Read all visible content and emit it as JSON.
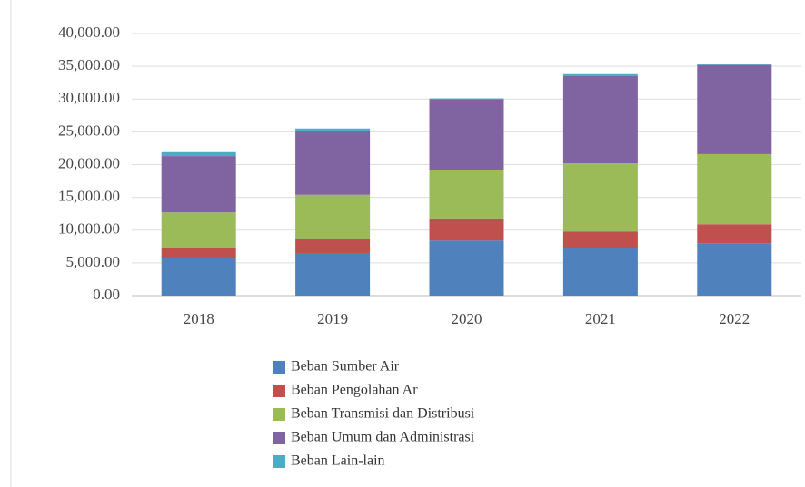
{
  "chart_data": {
    "type": "stacked_bar",
    "categories": [
      "2018",
      "2019",
      "2020",
      "2021",
      "2022"
    ],
    "series": [
      {
        "name": "Beban Sumber Air",
        "color": "#4f81bd",
        "values": [
          5700,
          6500,
          8400,
          7300,
          8000
        ]
      },
      {
        "name": "Beban Pengolahan Ar",
        "color": "#c0504d",
        "values": [
          1600,
          2200,
          3400,
          2500,
          2900
        ]
      },
      {
        "name": "Beban Transmisi dan Distribusi",
        "color": "#9bbb59",
        "values": [
          5400,
          6700,
          7400,
          10400,
          10700
        ]
      },
      {
        "name": "Beban Umum dan Administrasi",
        "color": "#8064a2",
        "values": [
          8600,
          9800,
          10800,
          13300,
          13600
        ]
      },
      {
        "name": "Beban Lain-lain",
        "color": "#4bacc6",
        "values": [
          600,
          300,
          100,
          300,
          100
        ]
      }
    ],
    "ylim": [
      0,
      40000
    ],
    "yticks": [
      {
        "value": 0,
        "label": "0.00"
      },
      {
        "value": 5000,
        "label": "5,000.00"
      },
      {
        "value": 10000,
        "label": "10,000.00"
      },
      {
        "value": 15000,
        "label": "15,000.00"
      },
      {
        "value": 20000,
        "label": "20,000.00"
      },
      {
        "value": 25000,
        "label": "25,000.00"
      },
      {
        "value": 30000,
        "label": "30,000.00"
      },
      {
        "value": 35000,
        "label": "35,000.00"
      },
      {
        "value": 40000,
        "label": "40,000.00"
      }
    ],
    "grid": true,
    "legend": "bottom"
  }
}
